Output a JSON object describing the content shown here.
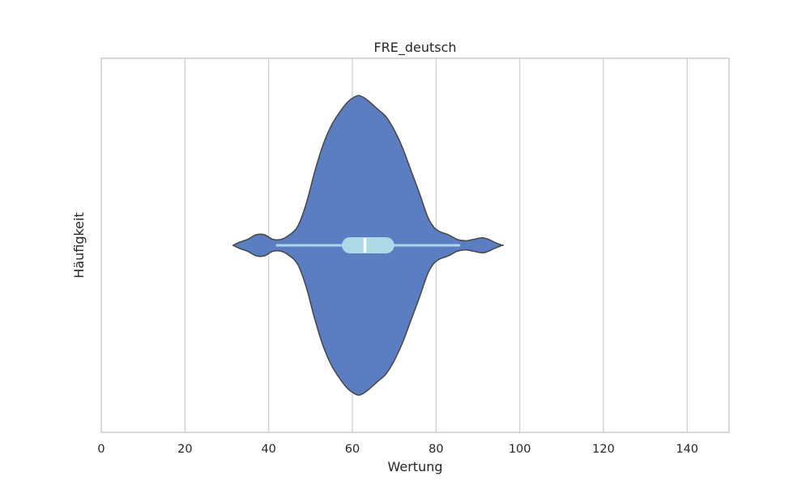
{
  "chart_data": {
    "type": "violin",
    "title": "FRE_deutsch",
    "xlabel": "Wertung",
    "ylabel": "Häufigkeit",
    "xlim": [
      0,
      150
    ],
    "xticks": [
      0,
      20,
      40,
      60,
      80,
      100,
      120,
      140
    ],
    "orientation": "horizontal",
    "grid": "vertical",
    "density": {
      "x": [
        31.5,
        33,
        35,
        37,
        39,
        41,
        43,
        45,
        47,
        49,
        51,
        53,
        55,
        57,
        59,
        60.5,
        61.5,
        62.5,
        64,
        66,
        68,
        70,
        72,
        74,
        76,
        78,
        79.5,
        81,
        83,
        85,
        87,
        89,
        91,
        92.5,
        94,
        95.8
      ],
      "y": [
        0.0,
        0.02,
        0.04,
        0.07,
        0.07,
        0.04,
        0.04,
        0.07,
        0.13,
        0.28,
        0.49,
        0.67,
        0.8,
        0.89,
        0.96,
        0.99,
        1.0,
        0.99,
        0.96,
        0.91,
        0.86,
        0.77,
        0.65,
        0.5,
        0.35,
        0.19,
        0.12,
        0.09,
        0.07,
        0.04,
        0.03,
        0.04,
        0.05,
        0.04,
        0.02,
        0.0
      ]
    },
    "box": {
      "q1": 57.5,
      "median": 63,
      "q3": 70,
      "whisker_low": 42,
      "whisker_high": 85.5
    },
    "colors": {
      "violin_fill": "#5b7ec2",
      "violin_edge": "#4a4a4a",
      "box_fill": "#add8e6",
      "median_line": "#ffffff",
      "grid": "#d0d0d0",
      "frame": "#cccccc"
    }
  }
}
